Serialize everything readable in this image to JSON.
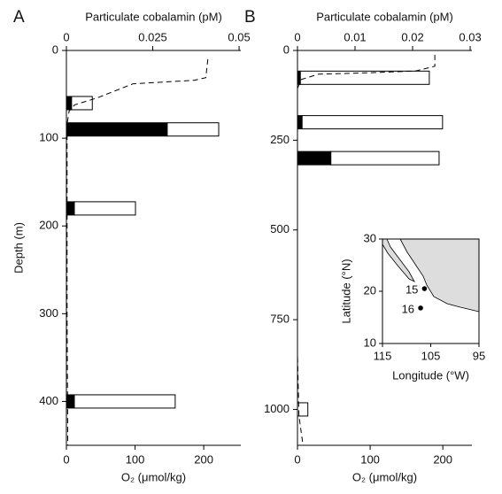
{
  "chart_data": [
    {
      "type": "bar",
      "orientation": "horizontal",
      "panel_label": "A",
      "title": "Particulate cobalamin (pM)",
      "xlabel": "O₂ (μmol/kg)",
      "ylabel": "Depth (m)",
      "depths": [
        60,
        90,
        180,
        400
      ],
      "series": [
        {
          "color": "#000000",
          "values": [
            0.0015,
            0.0292,
            0.0023,
            0.0023
          ]
        },
        {
          "color": "#ffffff",
          "values": [
            0.006,
            0.0149,
            0.0177,
            0.0292
          ]
        }
      ],
      "o2_profile": {
        "o2": [
          206,
          203,
          186,
          97,
          45,
          12,
          4,
          1,
          1,
          1,
          1,
          2
        ],
        "depth": [
          10,
          31,
          34,
          38,
          54,
          62,
          69,
          84,
          100,
          200,
          300,
          450
        ]
      },
      "xlim": [
        0,
        0.0505
      ],
      "xticks": [
        0,
        0.025,
        0.05
      ],
      "x2lim": [
        0,
        254
      ],
      "x2ticks": [
        0,
        100,
        200
      ],
      "ylim": [
        0,
        450
      ],
      "yticks": [
        0,
        100,
        200,
        300,
        400
      ],
      "y_inverted": true
    },
    {
      "type": "bar",
      "orientation": "horizontal",
      "panel_label": "B",
      "title": "Particulate cobalamin (pM)",
      "xlabel": "O₂ (μmol/kg)",
      "depths": [
        76,
        200,
        300,
        1000
      ],
      "series": [
        {
          "color": "#000000",
          "values": [
            0.0005,
            0.0008,
            0.0058,
            0
          ]
        },
        {
          "color": "#ffffff",
          "values": [
            0.0224,
            0.0244,
            0.0188,
            0.0018
          ]
        }
      ],
      "o2_profile": {
        "o2": [
          189,
          189,
          163,
          102,
          29,
          5,
          0,
          0,
          2,
          7
        ],
        "depth": [
          12,
          44,
          57,
          62,
          66,
          81,
          106,
          845,
          1017,
          1091
        ]
      },
      "xlim": [
        0,
        0.0303
      ],
      "xticks": [
        0,
        0.01,
        0.02,
        0.03
      ],
      "x2lim": [
        0,
        240
      ],
      "x2ticks": [
        0,
        100,
        200
      ],
      "ylim": [
        0,
        1100
      ],
      "yticks": [
        0,
        250,
        500,
        750,
        1000
      ],
      "y_inverted": true
    },
    {
      "type": "scatter",
      "xlabel": "Longitude (°W)",
      "ylabel": "Latitude (°N)",
      "x": [
        106.3,
        107.1
      ],
      "y": [
        20.5,
        16.8
      ],
      "labels": [
        "15",
        "16"
      ],
      "color": "#000000",
      "xlim": [
        115,
        95
      ],
      "xticks": [
        115,
        105,
        95
      ],
      "ylim": [
        10,
        30
      ],
      "yticks": [
        10,
        20,
        30
      ]
    }
  ]
}
